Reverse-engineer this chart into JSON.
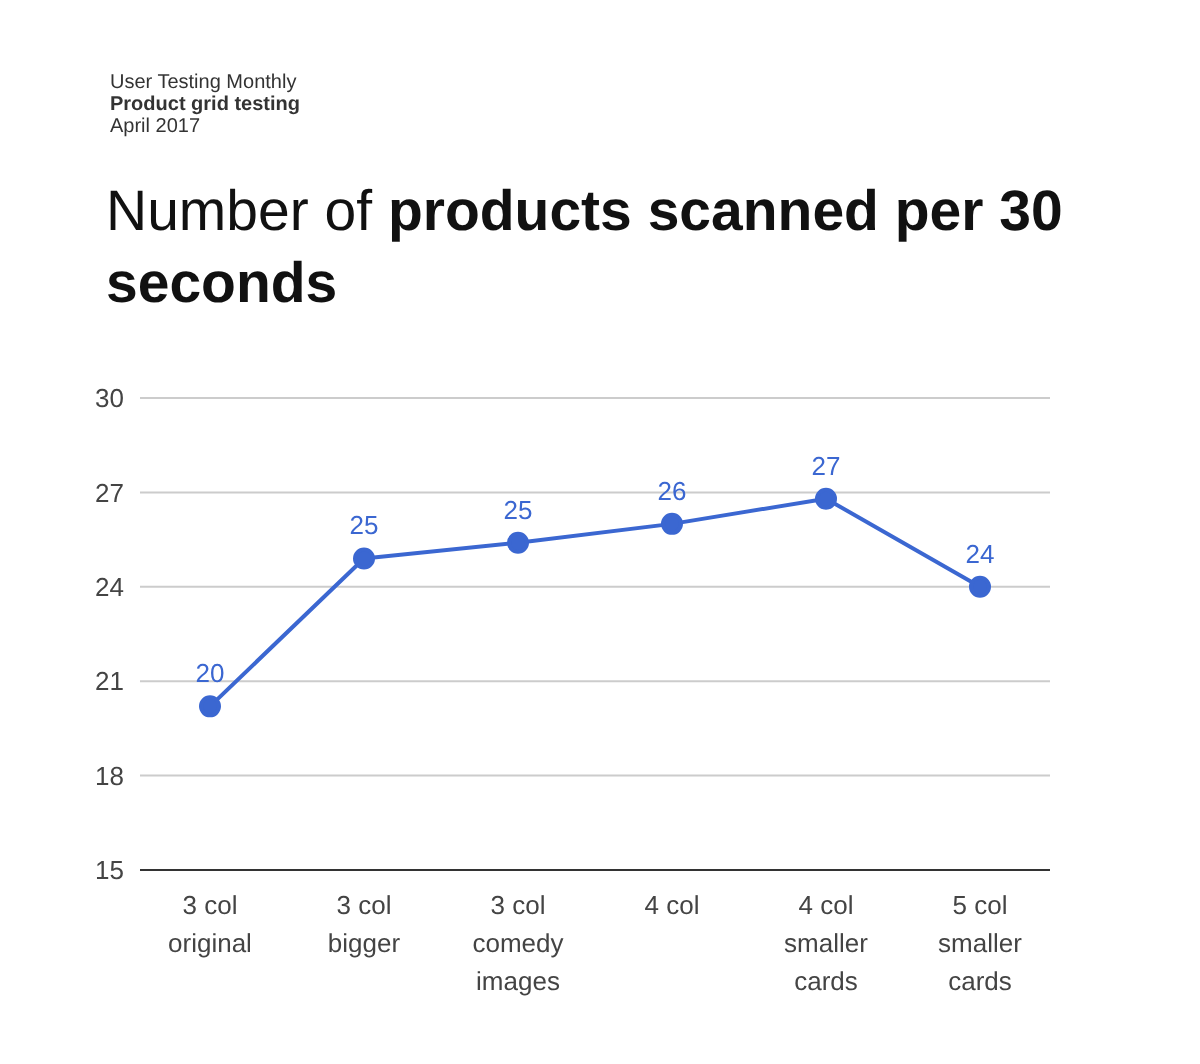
{
  "chart_data": {
    "type": "line",
    "title": "Number of products scanned per 30 seconds",
    "subtitle": "Product grid testing",
    "annotations": [
      "User Testing Monthly",
      "April 2017"
    ],
    "categories": [
      "3 col original",
      "3 col bigger",
      "3 col comedy images",
      "4 col",
      "4 col smaller cards",
      "5 col smaller cards"
    ],
    "series": [
      {
        "color": "#3b67d1",
        "values": [
          20.2,
          24.9,
          25.4,
          26,
          26.8,
          24
        ],
        "value_labels": [
          "20",
          "25",
          "25",
          "26",
          "27",
          "24"
        ]
      }
    ],
    "ylim": [
      15,
      30
    ],
    "yticks": [
      15,
      18,
      21,
      24,
      27,
      30
    ],
    "grid": "y",
    "marker": "circle",
    "line_style": "solid",
    "legend": false
  }
}
